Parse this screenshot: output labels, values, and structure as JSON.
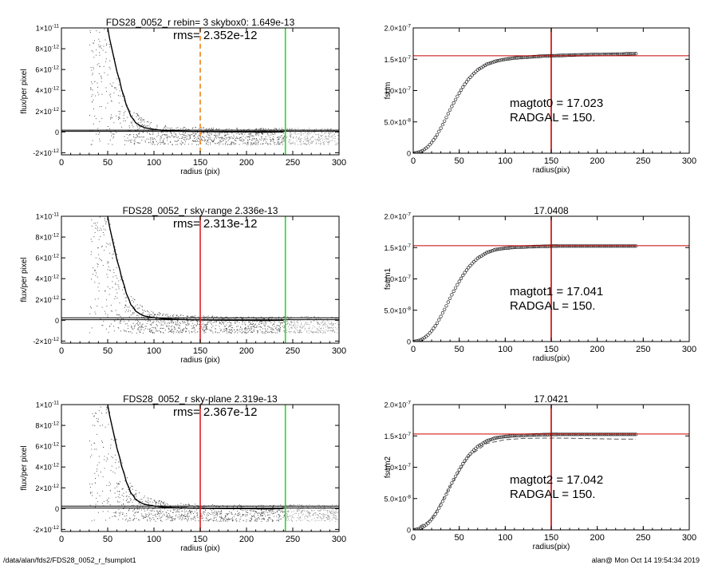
{
  "footer": {
    "path": "/data/alan/fds2/FDS28_0052_r_fsumplot1",
    "stamp": "alan@  Mon Oct 14 19:54:34 2019"
  },
  "chart_data": [
    {
      "type": "scatter",
      "title": "FDS28_0052_r rebin= 3    skybox0:  1.649e-13",
      "annotations": [
        "rms= 2.352e-12"
      ],
      "xlabel": "radius (pix)",
      "ylabel": "flux/per pixel",
      "xlim": [
        0,
        300
      ],
      "ylim": [
        -2.2e-12,
        1e-11
      ],
      "xticks": [
        0,
        50,
        100,
        150,
        200,
        250,
        300
      ],
      "ytick_labels": [
        {
          "value": 1e-11,
          "mant": "1×10",
          "exp": "-11"
        },
        {
          "value": 8e-12,
          "mant": "8×10",
          "exp": "-12"
        },
        {
          "value": 6e-12,
          "mant": "6×10",
          "exp": "-12"
        },
        {
          "value": 4e-12,
          "mant": "4×10",
          "exp": "-12"
        },
        {
          "value": 2e-12,
          "mant": "2×10",
          "exp": "-12"
        },
        {
          "value": 0,
          "mant": "0",
          "exp": ""
        },
        {
          "value": -2e-12,
          "mant": "-2×10",
          "exp": "-12"
        }
      ],
      "series": [
        {
          "style": "points",
          "color": "#555555",
          "description_x": "0-300",
          "x": [
            30,
            40,
            45,
            50,
            55,
            60,
            65,
            70,
            75,
            80,
            90,
            100,
            120,
            140,
            160,
            180,
            200,
            220,
            240,
            260,
            280,
            300
          ],
          "y": [
            1e-11,
            1e-11,
            1e-11,
            1e-11,
            8.5e-12,
            6.3e-12,
            4.6e-12,
            3.3e-12,
            2.5e-12,
            1.9e-12,
            1.2e-12,
            9e-13,
            6e-13,
            5e-13,
            4.5e-13,
            4e-13,
            4e-13,
            4e-13,
            4e-13,
            4e-13,
            4e-13,
            4e-13
          ]
        },
        {
          "style": "line",
          "color": "#000000",
          "x": [
            50,
            52,
            55,
            58,
            60,
            63,
            65,
            68,
            70,
            73,
            75,
            78,
            80,
            85,
            90,
            100,
            110,
            120,
            140,
            160,
            180,
            200,
            220,
            240
          ],
          "y": [
            1e-11,
            9e-12,
            7.8e-12,
            6.6e-12,
            5.8e-12,
            4.9e-12,
            4.1e-12,
            3.3e-12,
            2.6e-12,
            2e-12,
            1.5e-12,
            1.2e-12,
            9e-13,
            6e-13,
            4e-13,
            2.5e-13,
            1.5e-13,
            1e-13,
            5e-14,
            2e-14,
            0,
            0,
            -3e-14,
            0
          ]
        }
      ],
      "hlines": [
        {
          "y": 1.649e-13,
          "color": "#000000"
        },
        {
          "y": 5e-14,
          "color": "#000000"
        }
      ],
      "vlines": [
        {
          "x": 150,
          "color": "#f0801e",
          "dashed": true
        },
        {
          "x": 242,
          "color": "#2fd22f",
          "dashed": false
        }
      ]
    },
    {
      "type": "scatter",
      "title": "",
      "annotations": [
        "magtot0 =  17.023",
        "RADGAL =     150."
      ],
      "xlabel": "radius(pix)",
      "ylabel": "fsum",
      "xlim": [
        0,
        300
      ],
      "ylim": [
        0,
        2e-07
      ],
      "xticks": [
        0,
        50,
        100,
        150,
        200,
        250,
        300
      ],
      "ytick_labels": [
        {
          "value": 2e-07,
          "mant": "2.0×10",
          "exp": "-7"
        },
        {
          "value": 1.5e-07,
          "mant": "1.5×10",
          "exp": "-7"
        },
        {
          "value": 1e-07,
          "mant": "1.0×10",
          "exp": "-7"
        },
        {
          "value": 5e-08,
          "mant": "5.0×10",
          "exp": "-8"
        },
        {
          "value": 0,
          "mant": "0",
          "exp": ""
        }
      ],
      "series": [
        {
          "style": "markers",
          "color": "#000000",
          "x": [
            0,
            5,
            10,
            15,
            20,
            25,
            30,
            35,
            40,
            45,
            50,
            55,
            60,
            65,
            70,
            80,
            90,
            100,
            110,
            120,
            140,
            160,
            180,
            200,
            220,
            242
          ],
          "y": [
            0,
            1e-09,
            4e-09,
            9e-09,
            1.7e-08,
            2.7e-08,
            4e-08,
            5.4e-08,
            6.9e-08,
            8.3e-08,
            9.6e-08,
            1.08e-07,
            1.18e-07,
            1.26e-07,
            1.33e-07,
            1.42e-07,
            1.47e-07,
            1.5e-07,
            1.52e-07,
            1.53e-07,
            1.55e-07,
            1.56e-07,
            1.57e-07,
            1.575e-07,
            1.58e-07,
            1.59e-07
          ]
        }
      ],
      "hlines": [
        {
          "y": 1.555e-07,
          "color": "#cc0000"
        }
      ],
      "vlines": [
        {
          "x": 150,
          "color": "#cc0000",
          "dashed": false
        }
      ]
    },
    {
      "type": "scatter",
      "title": "FDS28_0052_r sky-range  2.336e-13",
      "annotations": [
        "rms= 2.313e-12"
      ],
      "xlabel": "radius (pix)",
      "ylabel": "flux/per pixel",
      "xlim": [
        0,
        300
      ],
      "ylim": [
        -2.2e-12,
        1e-11
      ],
      "xticks": [
        0,
        50,
        100,
        150,
        200,
        250,
        300
      ],
      "ytick_labels": [
        {
          "value": 1e-11,
          "mant": "1×10",
          "exp": "-11"
        },
        {
          "value": 8e-12,
          "mant": "8×10",
          "exp": "-12"
        },
        {
          "value": 6e-12,
          "mant": "6×10",
          "exp": "-12"
        },
        {
          "value": 4e-12,
          "mant": "4×10",
          "exp": "-12"
        },
        {
          "value": 2e-12,
          "mant": "2×10",
          "exp": "-12"
        },
        {
          "value": 0,
          "mant": "0",
          "exp": ""
        },
        {
          "value": -2e-12,
          "mant": "-2×10",
          "exp": "-12"
        }
      ],
      "series": [
        {
          "style": "points",
          "color": "#555555",
          "x": [
            30,
            40,
            45,
            50,
            55,
            60,
            65,
            70,
            75,
            80,
            90,
            100,
            120,
            140,
            160,
            180,
            200,
            220,
            240,
            260,
            280,
            300
          ],
          "y": [
            1e-11,
            1e-11,
            1e-11,
            1e-11,
            8.5e-12,
            6.3e-12,
            4.6e-12,
            3.3e-12,
            2.5e-12,
            1.9e-12,
            1.2e-12,
            9e-13,
            6e-13,
            5e-13,
            4.5e-13,
            4e-13,
            4e-13,
            4e-13,
            4e-13,
            4e-13,
            4e-13,
            4e-13
          ]
        },
        {
          "style": "line",
          "color": "#000000",
          "x": [
            50,
            52,
            55,
            58,
            60,
            63,
            65,
            68,
            70,
            73,
            75,
            78,
            80,
            85,
            90,
            100,
            110,
            120,
            140,
            160,
            180,
            200,
            220,
            240
          ],
          "y": [
            1e-11,
            9e-12,
            7.8e-12,
            6.6e-12,
            5.8e-12,
            4.9e-12,
            4.1e-12,
            3.3e-12,
            2.6e-12,
            2e-12,
            1.5e-12,
            1.2e-12,
            9e-13,
            6e-13,
            4e-13,
            2.5e-13,
            1.5e-13,
            1e-13,
            5e-14,
            2e-14,
            0,
            0,
            -3e-14,
            0
          ]
        }
      ],
      "hlines": [
        {
          "y": 2.336e-13,
          "color": "#000000"
        },
        {
          "y": 5e-14,
          "color": "#000000"
        }
      ],
      "vlines": [
        {
          "x": 150,
          "color": "#dd2222",
          "dashed": false
        },
        {
          "x": 242,
          "color": "#2fd22f",
          "dashed": false
        }
      ]
    },
    {
      "type": "scatter",
      "title": "17.0408",
      "annotations": [
        "magtot1 =  17.041",
        "RADGAL =     150."
      ],
      "xlabel": "radius(pix)",
      "ylabel": "fsum1",
      "xlim": [
        0,
        300
      ],
      "ylim": [
        0,
        2e-07
      ],
      "xticks": [
        0,
        50,
        100,
        150,
        200,
        250,
        300
      ],
      "ytick_labels": [
        {
          "value": 2e-07,
          "mant": "2.0×10",
          "exp": "-7"
        },
        {
          "value": 1.5e-07,
          "mant": "1.5×10",
          "exp": "-7"
        },
        {
          "value": 1e-07,
          "mant": "1.0×10",
          "exp": "-7"
        },
        {
          "value": 5e-08,
          "mant": "5.0×10",
          "exp": "-8"
        },
        {
          "value": 0,
          "mant": "0",
          "exp": ""
        }
      ],
      "series": [
        {
          "style": "markers",
          "color": "#000000",
          "x": [
            0,
            5,
            10,
            15,
            20,
            25,
            30,
            35,
            40,
            45,
            50,
            55,
            60,
            65,
            70,
            80,
            90,
            100,
            110,
            120,
            140,
            160,
            180,
            200,
            220,
            242
          ],
          "y": [
            0,
            1e-09,
            4e-09,
            9e-09,
            1.7e-08,
            2.7e-08,
            4e-08,
            5.4e-08,
            6.9e-08,
            8.3e-08,
            9.6e-08,
            1.08e-07,
            1.18e-07,
            1.26e-07,
            1.33e-07,
            1.42e-07,
            1.47e-07,
            1.49e-07,
            1.505e-07,
            1.51e-07,
            1.52e-07,
            1.525e-07,
            1.525e-07,
            1.525e-07,
            1.525e-07,
            1.525e-07
          ]
        }
      ],
      "hlines": [
        {
          "y": 1.53e-07,
          "color": "#cc0000"
        }
      ],
      "vlines": [
        {
          "x": 150,
          "color": "#cc0000",
          "dashed": false
        }
      ]
    },
    {
      "type": "scatter",
      "title": "FDS28_0052_r sky-plane  2.319e-13",
      "annotations": [
        "rms= 2.367e-12"
      ],
      "xlabel": "radius (pix)",
      "ylabel": "flux/per pixel",
      "xlim": [
        0,
        300
      ],
      "ylim": [
        -2.2e-12,
        1e-11
      ],
      "xticks": [
        0,
        50,
        100,
        150,
        200,
        250,
        300
      ],
      "ytick_labels": [
        {
          "value": 1e-11,
          "mant": "1×10",
          "exp": "-11"
        },
        {
          "value": 8e-12,
          "mant": "8×10",
          "exp": "-12"
        },
        {
          "value": 6e-12,
          "mant": "6×10",
          "exp": "-12"
        },
        {
          "value": 4e-12,
          "mant": "4×10",
          "exp": "-12"
        },
        {
          "value": 2e-12,
          "mant": "2×10",
          "exp": "-12"
        },
        {
          "value": 0,
          "mant": "0",
          "exp": ""
        },
        {
          "value": -2e-12,
          "mant": "-2×10",
          "exp": "-12"
        }
      ],
      "series": [
        {
          "style": "points",
          "color": "#555555",
          "x": [
            30,
            40,
            45,
            50,
            55,
            60,
            65,
            70,
            75,
            80,
            90,
            100,
            120,
            140,
            160,
            180,
            200,
            220,
            240,
            260,
            280,
            300
          ],
          "y": [
            1e-11,
            1e-11,
            1e-11,
            1e-11,
            8.5e-12,
            6.3e-12,
            4.6e-12,
            3.3e-12,
            2.5e-12,
            1.9e-12,
            1.2e-12,
            9e-13,
            6e-13,
            5e-13,
            4.5e-13,
            4e-13,
            4e-13,
            4e-13,
            4e-13,
            4e-13,
            4e-13,
            4e-13
          ]
        },
        {
          "style": "line",
          "color": "#000000",
          "x": [
            50,
            52,
            55,
            58,
            60,
            63,
            65,
            68,
            70,
            73,
            75,
            78,
            80,
            85,
            90,
            100,
            110,
            120,
            140,
            160,
            180,
            200,
            220,
            240
          ],
          "y": [
            1e-11,
            9e-12,
            7.8e-12,
            6.6e-12,
            5.8e-12,
            4.9e-12,
            4.1e-12,
            3.3e-12,
            2.6e-12,
            2e-12,
            1.5e-12,
            1.2e-12,
            9e-13,
            6e-13,
            4e-13,
            2.5e-13,
            1.5e-13,
            1e-13,
            5e-14,
            2e-14,
            0,
            0,
            -3e-14,
            0
          ]
        }
      ],
      "hlines": [
        {
          "y": 2.319e-13,
          "color": "#000000"
        },
        {
          "y": 5e-14,
          "color": "#000000"
        }
      ],
      "vlines": [
        {
          "x": 150,
          "color": "#dd2222",
          "dashed": false
        },
        {
          "x": 242,
          "color": "#2fd22f",
          "dashed": false
        }
      ]
    },
    {
      "type": "scatter",
      "title": "17.0421",
      "annotations": [
        "magtot2 =  17.042",
        "RADGAL =     150."
      ],
      "xlabel": "radius(pix)",
      "ylabel": "fsum2",
      "xlim": [
        0,
        300
      ],
      "ylim": [
        0,
        2e-07
      ],
      "xticks": [
        0,
        50,
        100,
        150,
        200,
        250,
        300
      ],
      "ytick_labels": [
        {
          "value": 2e-07,
          "mant": "2.0×10",
          "exp": "-7"
        },
        {
          "value": 1.5e-07,
          "mant": "1.5×10",
          "exp": "-7"
        },
        {
          "value": 1e-07,
          "mant": "1.0×10",
          "exp": "-7"
        },
        {
          "value": 5e-08,
          "mant": "5.0×10",
          "exp": "-8"
        },
        {
          "value": 0,
          "mant": "0",
          "exp": ""
        }
      ],
      "series": [
        {
          "style": "markers",
          "color": "#000000",
          "x": [
            0,
            5,
            10,
            15,
            20,
            25,
            30,
            35,
            40,
            45,
            50,
            55,
            60,
            65,
            70,
            80,
            90,
            100,
            110,
            120,
            140,
            160,
            180,
            200,
            220,
            242
          ],
          "y": [
            0,
            1e-09,
            4e-09,
            9e-09,
            1.7e-08,
            2.7e-08,
            4e-08,
            5.4e-08,
            6.9e-08,
            8.3e-08,
            9.6e-08,
            1.08e-07,
            1.18e-07,
            1.26e-07,
            1.33e-07,
            1.42e-07,
            1.47e-07,
            1.49e-07,
            1.505e-07,
            1.51e-07,
            1.52e-07,
            1.525e-07,
            1.525e-07,
            1.525e-07,
            1.525e-07,
            1.525e-07
          ]
        },
        {
          "style": "dashed",
          "color": "#555555",
          "x": [
            0,
            20,
            40,
            60,
            80,
            100,
            120,
            140,
            160,
            180,
            200,
            220,
            242
          ],
          "y": [
            0,
            1.7e-08,
            6.9e-08,
            1.17e-07,
            1.38e-07,
            1.44e-07,
            1.46e-07,
            1.465e-07,
            1.465e-07,
            1.46e-07,
            1.455e-07,
            1.45e-07,
            1.45e-07
          ]
        }
      ],
      "hlines": [
        {
          "y": 1.53e-07,
          "color": "#cc0000"
        }
      ],
      "vlines": [
        {
          "x": 150,
          "color": "#cc0000",
          "dashed": false
        }
      ]
    }
  ]
}
